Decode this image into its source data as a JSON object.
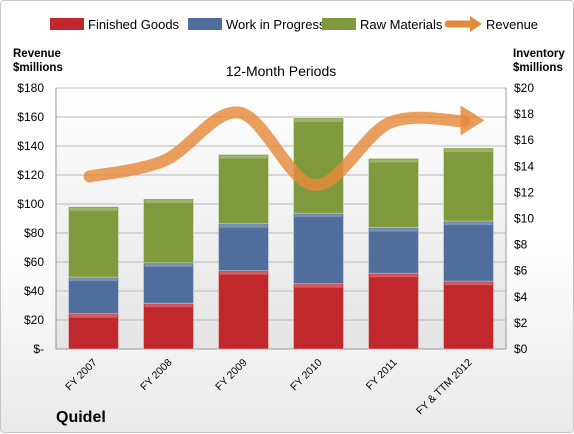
{
  "chart_data": {
    "type": "bar",
    "stacked": true,
    "subtitle": "12-Month Periods",
    "company": "Quidel",
    "left_axis": {
      "label_line1": "Revenue",
      "label_line2": "$millions",
      "ylim": [
        0,
        180
      ],
      "ticks": [
        "$-",
        "$20",
        "$40",
        "$60",
        "$80",
        "$100",
        "$120",
        "$140",
        "$160",
        "$180"
      ]
    },
    "right_axis": {
      "label_line1": "Inventory",
      "label_line2": "$millions",
      "ylim": [
        0,
        20
      ],
      "ticks": [
        "$0",
        "$2",
        "$4",
        "$6",
        "$8",
        "$10",
        "$12",
        "$14",
        "$16",
        "$18",
        "$20"
      ]
    },
    "categories": [
      "FY 2007",
      "FY 2008",
      "FY 2009",
      "FY 2010",
      "FY 2011",
      "FY & TTM 2012"
    ],
    "series": [
      {
        "name": "Finished Goods",
        "axis": "right",
        "color": "#c0282b",
        "values": [
          2.7,
          3.5,
          6.0,
          5.0,
          5.8,
          5.2
        ]
      },
      {
        "name": "Work in Progress",
        "axis": "right",
        "color": "#4f6e9b",
        "values": [
          2.8,
          3.1,
          3.6,
          5.4,
          3.5,
          4.6
        ]
      },
      {
        "name": "Raw Materials",
        "axis": "right",
        "color": "#7f9a3c",
        "values": [
          5.4,
          4.9,
          5.3,
          7.3,
          5.3,
          5.6
        ]
      },
      {
        "name": "Revenue",
        "axis": "left",
        "type": "line",
        "color": "#e58a3c",
        "values": [
          119,
          130,
          163,
          113,
          156,
          157
        ]
      }
    ],
    "legend_position": "top",
    "grid": true
  }
}
